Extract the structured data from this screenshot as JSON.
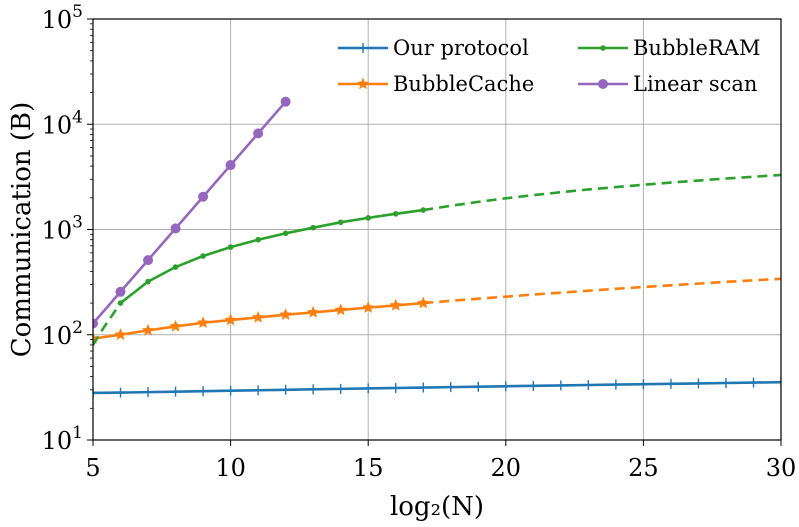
{
  "chart_data": {
    "type": "line",
    "xlabel": "log₂(N)",
    "ylabel": "Communication (B)",
    "yscale": "log",
    "xlim": [
      5,
      30
    ],
    "ylim": [
      10,
      100000
    ],
    "grid": true,
    "legend_position": "top-right",
    "x_ticks": [
      "5",
      "10",
      "15",
      "20",
      "25",
      "30"
    ],
    "y_ticks": [
      {
        "base": "10",
        "exp": "1",
        "value": 10
      },
      {
        "base": "10",
        "exp": "2",
        "value": 100
      },
      {
        "base": "10",
        "exp": "3",
        "value": 1000
      },
      {
        "base": "10",
        "exp": "4",
        "value": 10000
      },
      {
        "base": "10",
        "exp": "5",
        "value": 100000
      }
    ],
    "series": [
      {
        "name": "Our protocol",
        "color": "#1f77b4",
        "marker": "plus",
        "x": [
          5,
          6,
          7,
          8,
          9,
          10,
          11,
          12,
          13,
          14,
          15,
          16,
          17,
          18,
          19,
          20,
          21,
          22,
          23,
          24,
          25,
          26,
          27,
          28,
          29,
          30
        ],
        "y": [
          28,
          28.2,
          28.5,
          28.8,
          29.1,
          29.4,
          29.7,
          30,
          30.3,
          30.6,
          30.9,
          31.2,
          31.5,
          31.8,
          32.1,
          32.4,
          32.7,
          33,
          33.3,
          33.6,
          33.9,
          34.2,
          34.5,
          34.8,
          35.1,
          35.4
        ]
      },
      {
        "name": "BubbleCache",
        "color": "#ff7f0e",
        "marker": "star",
        "x": [
          5,
          6,
          7,
          8,
          9,
          10,
          11,
          12,
          13,
          14,
          15,
          16,
          17
        ],
        "y": [
          92,
          100,
          110,
          120,
          130,
          138,
          146,
          155,
          163,
          172,
          181,
          190,
          200
        ],
        "dashed_x": [
          17,
          18,
          19,
          20,
          21,
          22,
          23,
          24,
          25,
          26,
          27,
          28,
          29,
          30
        ],
        "dashed_y": [
          200,
          210,
          220,
          230,
          241,
          251,
          262,
          273,
          284,
          295,
          306,
          318,
          329,
          340
        ]
      },
      {
        "name": "BubbleRAM",
        "color": "#2ca02c",
        "marker": "dot",
        "x": [
          6,
          7,
          8,
          9,
          10,
          11,
          12,
          13,
          14,
          15,
          16,
          17
        ],
        "y": [
          200,
          320,
          440,
          560,
          680,
          800,
          920,
          1040,
          1170,
          1290,
          1410,
          1530
        ],
        "dashed_x": [
          5,
          5.4,
          6
        ],
        "dashed_y": [
          80,
          118,
          200
        ],
        "dashed_x2": [
          17,
          18,
          19,
          20,
          21,
          22,
          23,
          24,
          25,
          26,
          27,
          28,
          29,
          30
        ],
        "dashed_y2": [
          1530,
          1680,
          1830,
          1980,
          2120,
          2260,
          2400,
          2530,
          2660,
          2790,
          2920,
          3050,
          3170,
          3300
        ]
      },
      {
        "name": "Linear scan",
        "color": "#9467bd",
        "marker": "circle",
        "x": [
          5,
          6,
          7,
          8,
          9,
          10,
          11,
          12
        ],
        "y": [
          128,
          256,
          512,
          1024,
          2048,
          4096,
          8192,
          16384
        ]
      }
    ]
  }
}
